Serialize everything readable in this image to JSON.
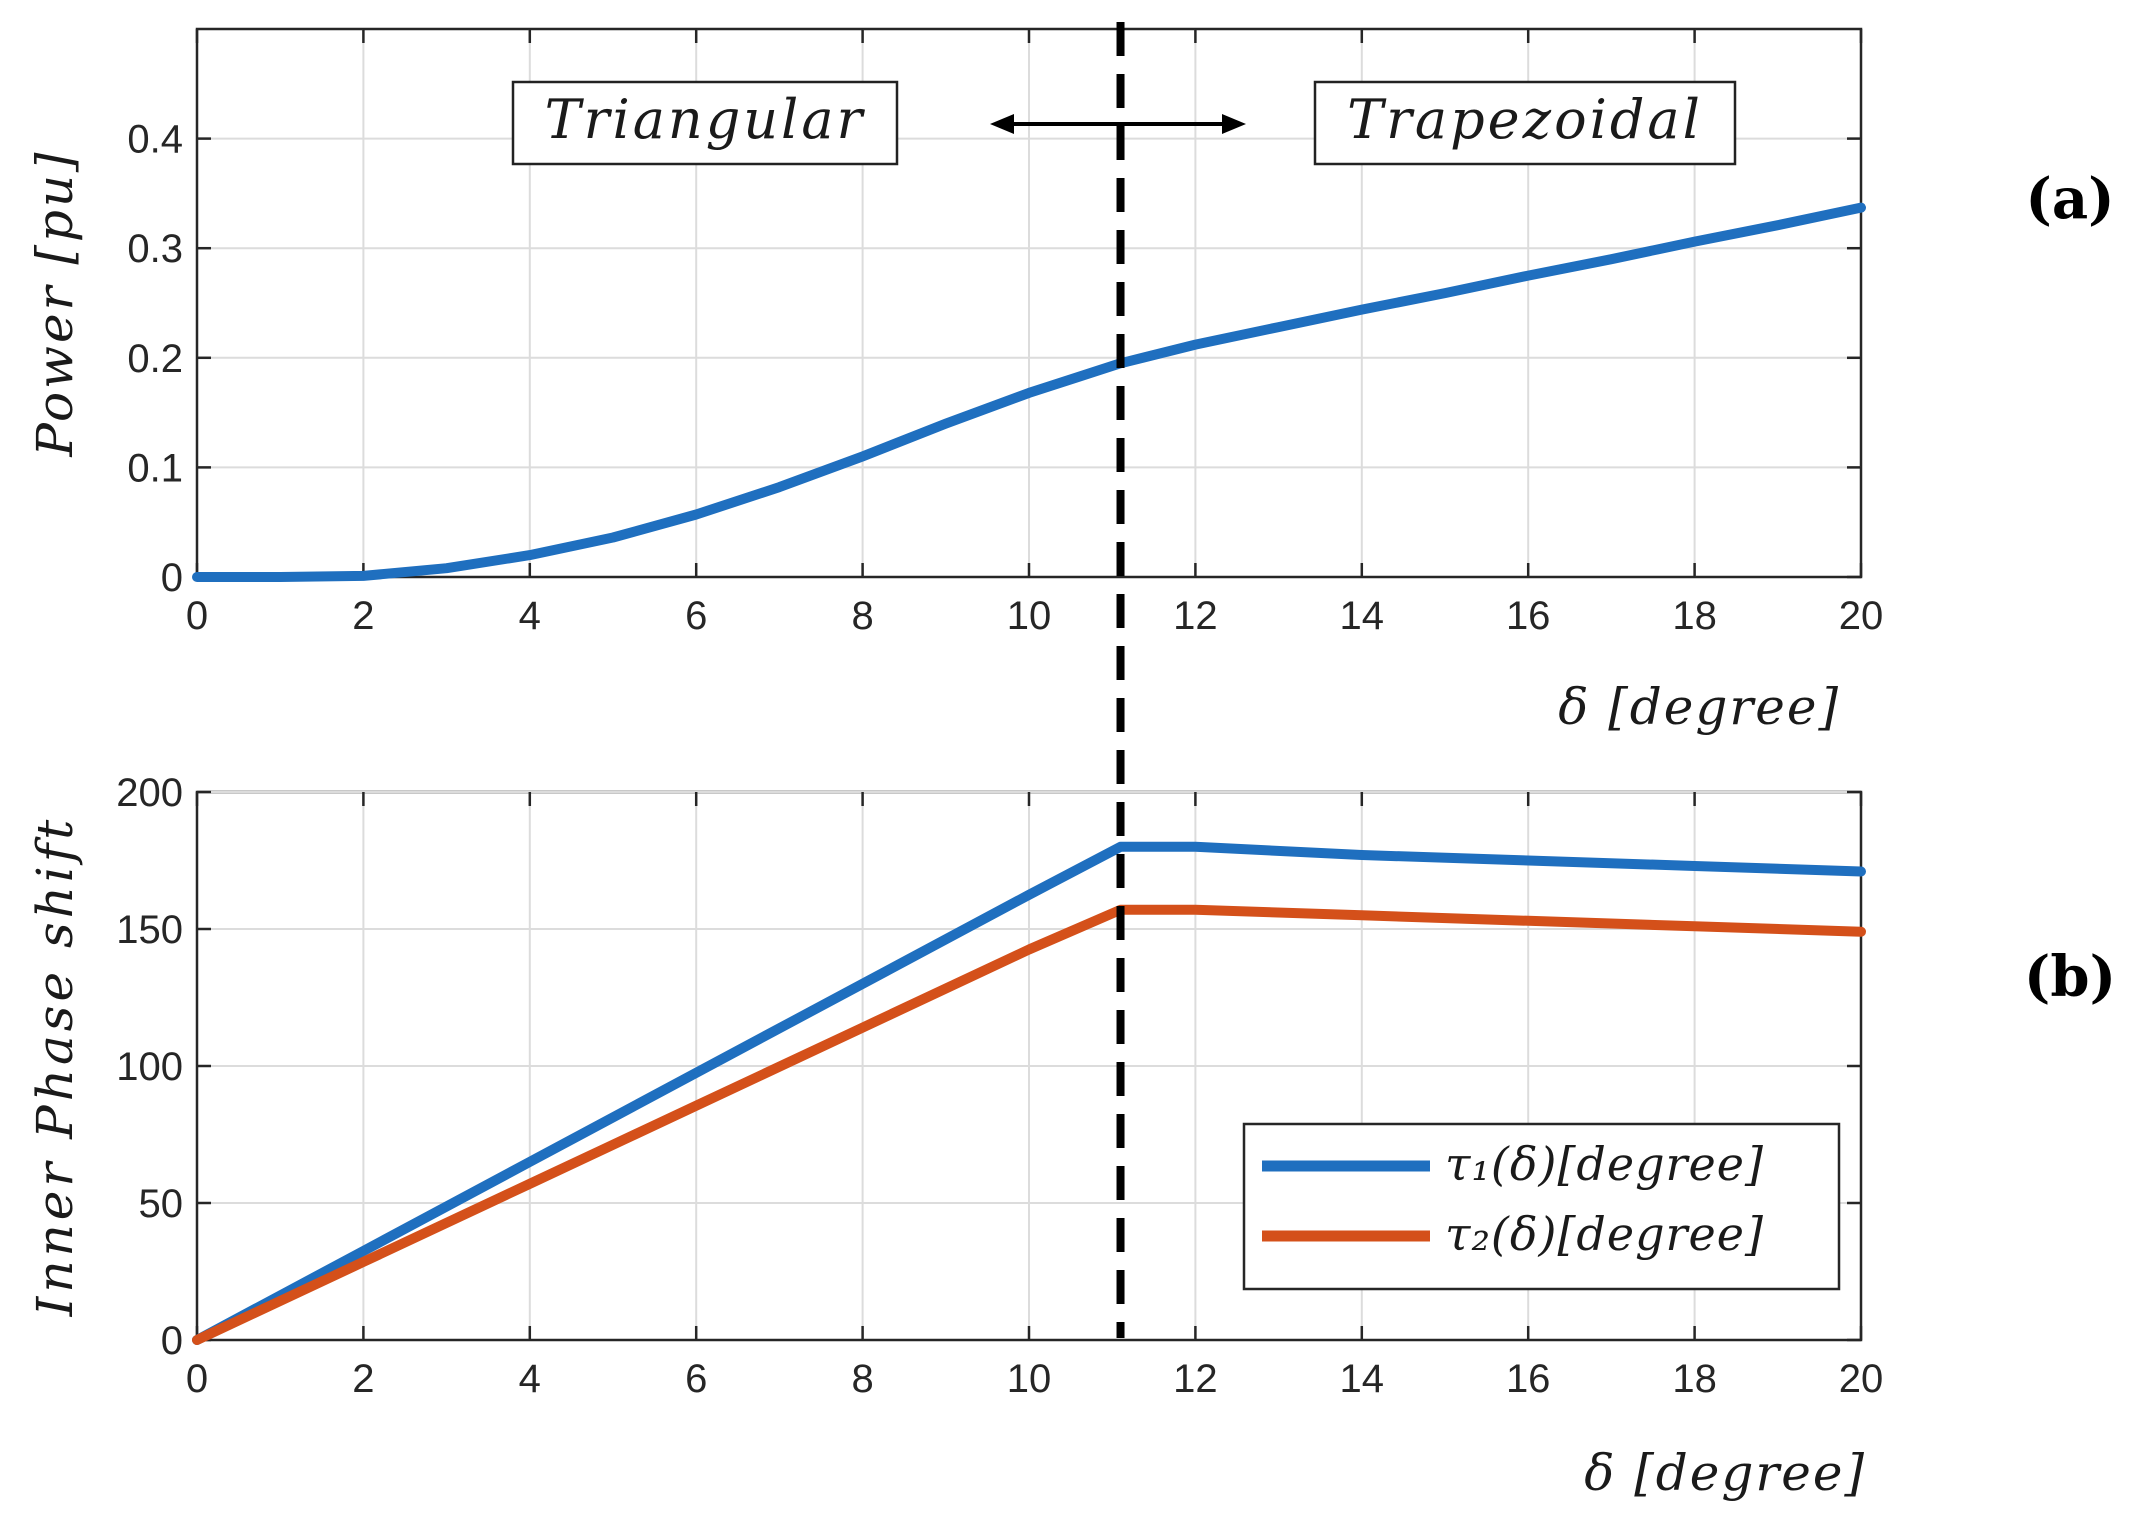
{
  "colors": {
    "series1": "#1f6fbf",
    "series2": "#d4501a",
    "boundary": "#000000"
  },
  "chart_data": [
    {
      "panel": "(a)",
      "type": "line",
      "xlabel": "δ [degree]",
      "ylabel": "Power [pu]",
      "xlim": [
        0,
        20
      ],
      "ylim": [
        0,
        0.5
      ],
      "xticks": [
        "0",
        "2",
        "4",
        "6",
        "8",
        "10",
        "12",
        "14",
        "16",
        "18",
        "20"
      ],
      "yticks": [
        "0",
        "0.1",
        "0.2",
        "0.3",
        "0.4"
      ],
      "grid": true,
      "boundary_x": 11.1,
      "annotations": {
        "left_region": "Triangular",
        "right_region": "Trapezoidal",
        "arrow": "↔"
      },
      "series": [
        {
          "name": "Power",
          "x": [
            0,
            1,
            2,
            3,
            4,
            5,
            6,
            7,
            8,
            9,
            10,
            11.1,
            12,
            13,
            14,
            15,
            16,
            17,
            18,
            19,
            20
          ],
          "values": [
            0,
            0,
            0.001,
            0.008,
            0.02,
            0.036,
            0.057,
            0.082,
            0.11,
            0.14,
            0.168,
            0.195,
            0.212,
            0.228,
            0.244,
            0.259,
            0.275,
            0.29,
            0.306,
            0.321,
            0.337
          ]
        }
      ]
    },
    {
      "panel": "(b)",
      "type": "line",
      "xlabel": "δ [degree]",
      "ylabel": "Inner Phase shift",
      "xlim": [
        0,
        20
      ],
      "ylim": [
        0,
        200
      ],
      "xticks": [
        "0",
        "2",
        "4",
        "6",
        "8",
        "10",
        "12",
        "14",
        "16",
        "18",
        "20"
      ],
      "yticks": [
        "0",
        "50",
        "100",
        "150",
        "200"
      ],
      "grid": true,
      "boundary_x": 11.1,
      "legend_position": "bottom-right",
      "series": [
        {
          "name": "τ₁(δ)[degree]",
          "x": [
            0,
            2,
            4,
            6,
            8,
            10,
            11.1,
            12,
            14,
            16,
            18,
            20
          ],
          "values": [
            0,
            32.5,
            65,
            97.5,
            130,
            162.5,
            180,
            180,
            177,
            175,
            173,
            171
          ]
        },
        {
          "name": "τ₂(δ)[degree]",
          "x": [
            0,
            2,
            4,
            6,
            8,
            10,
            11.1,
            12,
            14,
            16,
            18,
            20
          ],
          "values": [
            0,
            28.5,
            57,
            85.5,
            114,
            142.5,
            157,
            157,
            155,
            153,
            151,
            149
          ]
        }
      ]
    }
  ]
}
